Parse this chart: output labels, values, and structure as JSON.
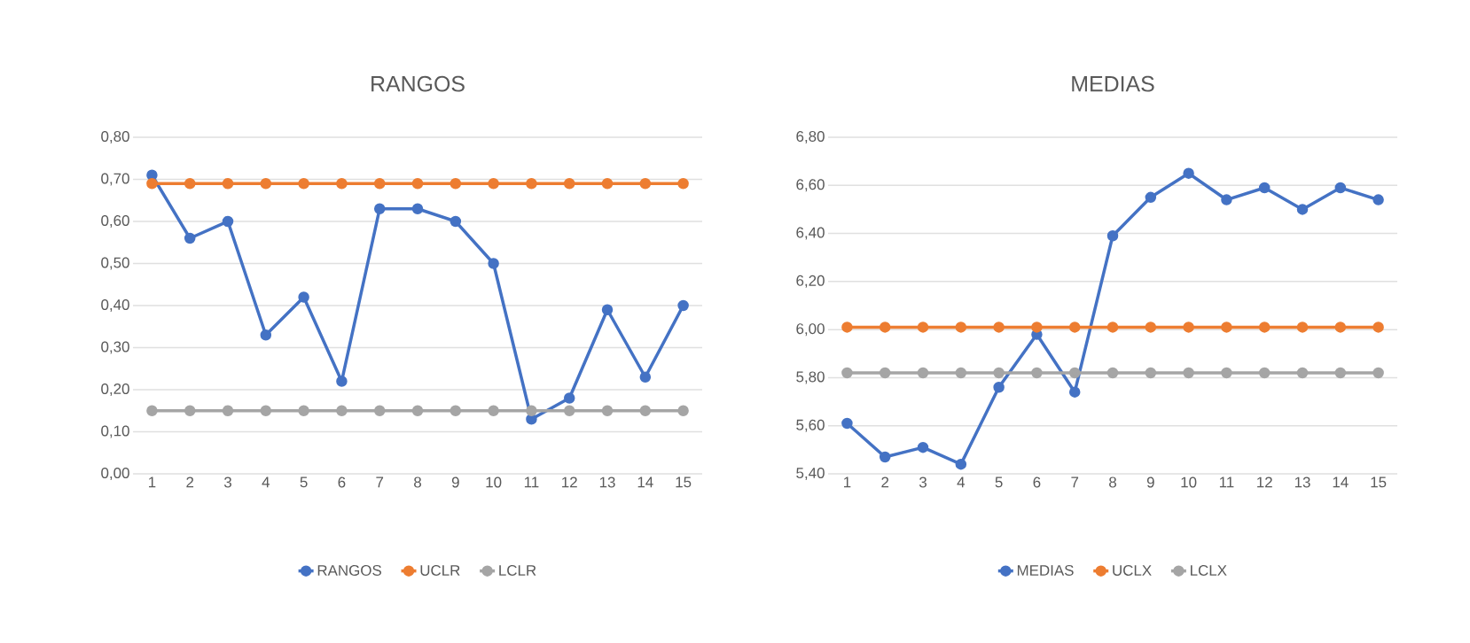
{
  "chart_data": [
    {
      "type": "line",
      "title": "RANGOS",
      "categories": [
        "1",
        "2",
        "3",
        "4",
        "5",
        "6",
        "7",
        "8",
        "9",
        "10",
        "11",
        "12",
        "13",
        "14",
        "15"
      ],
      "series": [
        {
          "name": "RANGOS",
          "color": "#4472c4",
          "values": [
            0.71,
            0.56,
            0.6,
            0.33,
            0.42,
            0.22,
            0.63,
            0.63,
            0.6,
            0.5,
            0.13,
            0.18,
            0.39,
            0.23,
            0.4
          ]
        },
        {
          "name": "UCLR",
          "color": "#ed7d31",
          "values": [
            0.69,
            0.69,
            0.69,
            0.69,
            0.69,
            0.69,
            0.69,
            0.69,
            0.69,
            0.69,
            0.69,
            0.69,
            0.69,
            0.69,
            0.69
          ]
        },
        {
          "name": "LCLR",
          "color": "#a5a5a5",
          "values": [
            0.15,
            0.15,
            0.15,
            0.15,
            0.15,
            0.15,
            0.15,
            0.15,
            0.15,
            0.15,
            0.15,
            0.15,
            0.15,
            0.15,
            0.15
          ]
        }
      ],
      "ylim": [
        0,
        0.8
      ],
      "yticks": [
        {
          "value": 0,
          "label": "0,00"
        },
        {
          "value": 0.1,
          "label": "0,10"
        },
        {
          "value": 0.2,
          "label": "0,20"
        },
        {
          "value": 0.3,
          "label": "0,30"
        },
        {
          "value": 0.4,
          "label": "0,40"
        },
        {
          "value": 0.5,
          "label": "0,50"
        },
        {
          "value": 0.6,
          "label": "0,60"
        },
        {
          "value": 0.7,
          "label": "0,70"
        },
        {
          "value": 0.8,
          "label": "0,80"
        }
      ],
      "grid": "y",
      "legend": "bottom",
      "marker": "circle"
    },
    {
      "type": "line",
      "title": "MEDIAS",
      "categories": [
        "1",
        "2",
        "3",
        "4",
        "5",
        "6",
        "7",
        "8",
        "9",
        "10",
        "11",
        "12",
        "13",
        "14",
        "15"
      ],
      "series": [
        {
          "name": "MEDIAS",
          "color": "#4472c4",
          "values": [
            5.61,
            5.47,
            5.51,
            5.44,
            5.76,
            5.98,
            5.74,
            6.39,
            6.55,
            6.65,
            6.54,
            6.59,
            6.5,
            6.59,
            6.54
          ]
        },
        {
          "name": "UCLX",
          "color": "#ed7d31",
          "values": [
            6.01,
            6.01,
            6.01,
            6.01,
            6.01,
            6.01,
            6.01,
            6.01,
            6.01,
            6.01,
            6.01,
            6.01,
            6.01,
            6.01,
            6.01
          ]
        },
        {
          "name": "LCLX",
          "color": "#a5a5a5",
          "values": [
            5.82,
            5.82,
            5.82,
            5.82,
            5.82,
            5.82,
            5.82,
            5.82,
            5.82,
            5.82,
            5.82,
            5.82,
            5.82,
            5.82,
            5.82
          ]
        }
      ],
      "ylim": [
        5.4,
        6.8
      ],
      "yticks": [
        {
          "value": 5.4,
          "label": "5,40"
        },
        {
          "value": 5.6,
          "label": "5,60"
        },
        {
          "value": 5.8,
          "label": "5,80"
        },
        {
          "value": 6.0,
          "label": "6,00"
        },
        {
          "value": 6.2,
          "label": "6,20"
        },
        {
          "value": 6.4,
          "label": "6,40"
        },
        {
          "value": 6.6,
          "label": "6,60"
        },
        {
          "value": 6.8,
          "label": "6,80"
        }
      ],
      "grid": "y",
      "legend": "bottom",
      "marker": "circle"
    }
  ]
}
